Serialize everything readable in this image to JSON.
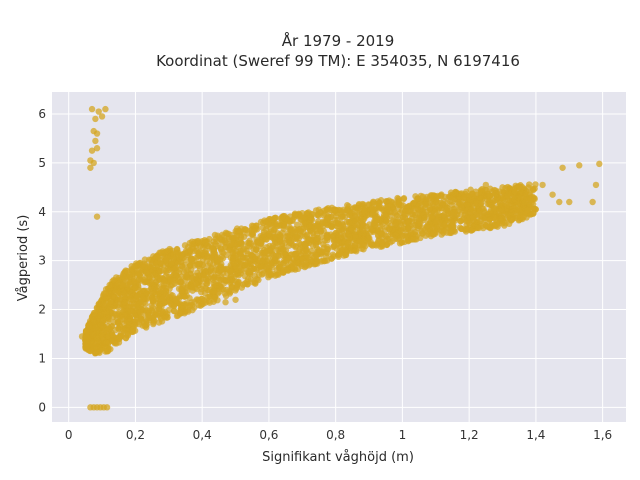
{
  "colors": {
    "plot_background": "#e5e5ee",
    "grid": "#ffffff",
    "marker": "#d4a520"
  },
  "chart_data": {
    "type": "scatter",
    "title_line1": "År 1979 - 2019",
    "title_line2": "Koordinat (Sweref 99 TM): E 354035, N 6197416",
    "xlabel": "Signifikant våghöjd (m)",
    "ylabel": "Vågperiod (s)",
    "xlim": [
      -0.05,
      1.67
    ],
    "ylim": [
      -0.3,
      6.45
    ],
    "grid": true,
    "x_ticks": [
      0,
      0.2,
      0.4,
      0.6,
      0.8,
      1,
      1.2,
      1.4,
      1.6
    ],
    "x_tick_labels": [
      "0",
      "0,2",
      "0,4",
      "0,6",
      "0,8",
      "1",
      "1,2",
      "1,4",
      "1,6"
    ],
    "y_ticks": [
      0,
      1,
      2,
      3,
      4,
      5,
      6
    ],
    "y_tick_labels": [
      "0",
      "1",
      "2",
      "3",
      "4",
      "5",
      "6"
    ],
    "series": [
      {
        "marker_color": "#d4a520",
        "main_band": [
          {
            "x": 0.05,
            "lo": 1.2,
            "hi": 1.55
          },
          {
            "x": 0.08,
            "lo": 1.1,
            "hi": 2.0
          },
          {
            "x": 0.12,
            "lo": 1.15,
            "hi": 2.55
          },
          {
            "x": 0.2,
            "lo": 1.55,
            "hi": 2.95
          },
          {
            "x": 0.3,
            "lo": 1.8,
            "hi": 3.25
          },
          {
            "x": 0.4,
            "lo": 2.05,
            "hi": 3.45
          },
          {
            "x": 0.5,
            "lo": 2.35,
            "hi": 3.65
          },
          {
            "x": 0.6,
            "lo": 2.65,
            "hi": 3.85
          },
          {
            "x": 0.7,
            "lo": 2.85,
            "hi": 4.0
          },
          {
            "x": 0.8,
            "lo": 3.05,
            "hi": 4.1
          },
          {
            "x": 0.9,
            "lo": 3.25,
            "hi": 4.2
          },
          {
            "x": 1.0,
            "lo": 3.35,
            "hi": 4.3
          },
          {
            "x": 1.1,
            "lo": 3.5,
            "hi": 4.35
          },
          {
            "x": 1.2,
            "lo": 3.6,
            "hi": 4.45
          },
          {
            "x": 1.3,
            "lo": 3.7,
            "hi": 4.5
          },
          {
            "x": 1.4,
            "lo": 3.95,
            "hi": 4.6
          }
        ],
        "outliers": [
          {
            "x": 0.065,
            "y": 0
          },
          {
            "x": 0.075,
            "y": 0
          },
          {
            "x": 0.085,
            "y": 0
          },
          {
            "x": 0.095,
            "y": 0
          },
          {
            "x": 0.105,
            "y": 0
          },
          {
            "x": 0.115,
            "y": 0
          },
          {
            "x": 0.07,
            "y": 6.1
          },
          {
            "x": 0.09,
            "y": 6.05
          },
          {
            "x": 0.11,
            "y": 6.1
          },
          {
            "x": 0.08,
            "y": 5.9
          },
          {
            "x": 0.1,
            "y": 5.95
          },
          {
            "x": 0.075,
            "y": 5.65
          },
          {
            "x": 0.085,
            "y": 5.6
          },
          {
            "x": 0.08,
            "y": 5.45
          },
          {
            "x": 0.07,
            "y": 5.25
          },
          {
            "x": 0.085,
            "y": 5.3
          },
          {
            "x": 0.065,
            "y": 5.05
          },
          {
            "x": 0.075,
            "y": 5.0
          },
          {
            "x": 0.065,
            "y": 4.9
          },
          {
            "x": 0.085,
            "y": 3.9
          },
          {
            "x": 1.25,
            "y": 4.55
          },
          {
            "x": 1.3,
            "y": 4.5
          },
          {
            "x": 1.35,
            "y": 4.3
          },
          {
            "x": 1.38,
            "y": 4.1
          },
          {
            "x": 1.42,
            "y": 4.55
          },
          {
            "x": 1.45,
            "y": 4.35
          },
          {
            "x": 1.47,
            "y": 4.2
          },
          {
            "x": 1.48,
            "y": 4.9
          },
          {
            "x": 1.5,
            "y": 4.2
          },
          {
            "x": 1.53,
            "y": 4.95
          },
          {
            "x": 1.57,
            "y": 4.2
          },
          {
            "x": 1.58,
            "y": 4.55
          },
          {
            "x": 1.59,
            "y": 4.98
          },
          {
            "x": 0.47,
            "y": 2.15
          },
          {
            "x": 0.5,
            "y": 2.2
          },
          {
            "x": 0.04,
            "y": 1.45
          }
        ]
      }
    ]
  }
}
